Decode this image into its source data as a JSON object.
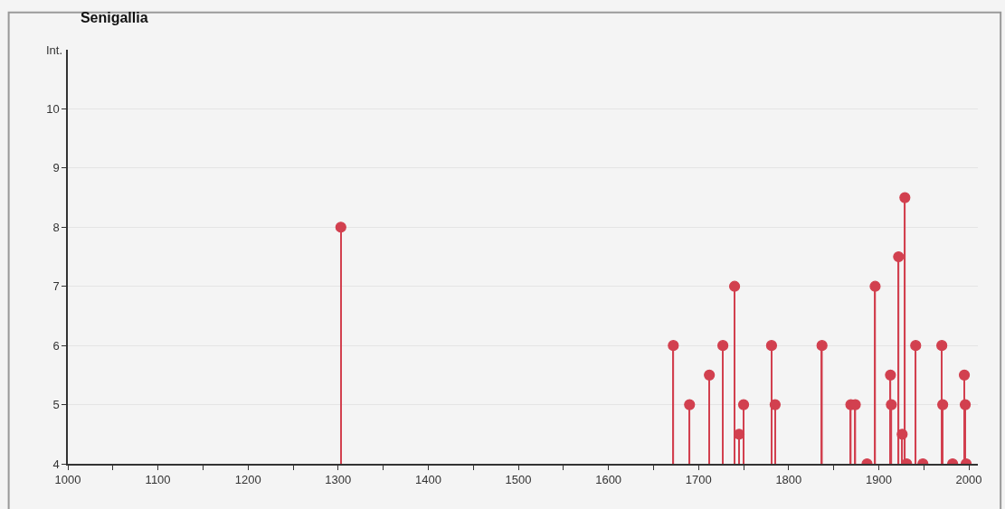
{
  "chart_data": {
    "type": "lollipop",
    "title": "Senigallia",
    "ylabel": "Int.",
    "x": [
      1303,
      1672,
      1690,
      1712,
      1727,
      1740,
      1745,
      1750,
      1781,
      1785,
      1837,
      1869,
      1874,
      1887,
      1896,
      1913,
      1914,
      1922,
      1926,
      1929,
      1931,
      1941,
      1949,
      1970,
      1971,
      1982,
      1995,
      1996,
      1997
    ],
    "series": [
      {
        "color": "#d2404f",
        "values": [
          8,
          6,
          5,
          5.5,
          6,
          7,
          4.5,
          5,
          6,
          5,
          6,
          5,
          5,
          4,
          7,
          5.5,
          5,
          7.5,
          4.5,
          8.5,
          4,
          6,
          4,
          6,
          5,
          4,
          5.5,
          5,
          4
        ]
      }
    ],
    "xlim": [
      1000,
      2010
    ],
    "xticks": [
      1000,
      {
        "value": 1050,
        "label": null
      },
      1100,
      {
        "value": 1150,
        "label": null
      },
      1200,
      {
        "value": 1250,
        "label": null
      },
      1300,
      {
        "value": 1350,
        "label": null
      },
      1400,
      {
        "value": 1450,
        "label": null
      },
      1500,
      {
        "value": 1550,
        "label": null
      },
      1600,
      {
        "value": 1650,
        "label": null
      },
      1700,
      {
        "value": 1750,
        "label": null
      },
      1800,
      {
        "value": 1850,
        "label": null
      },
      1900,
      {
        "value": 1950,
        "label": null
      },
      2000
    ],
    "ylim": [
      4,
      11
    ],
    "yticks": [
      4,
      5,
      6,
      7,
      8,
      9,
      10
    ],
    "grid": "y",
    "marker": "circle"
  }
}
